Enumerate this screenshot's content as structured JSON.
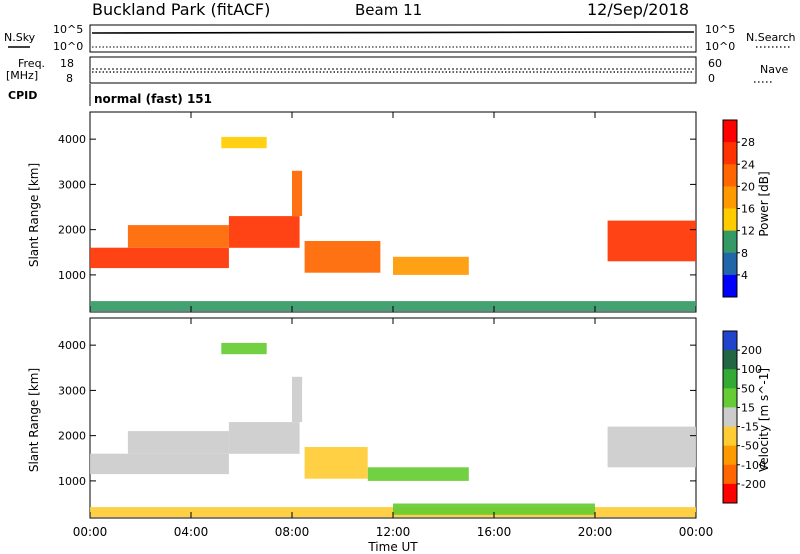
{
  "header": {
    "station": "Buckland Park (fitACF)",
    "beam": "Beam 11",
    "date": "12/Sep/2018"
  },
  "noise_panel": {
    "left_label": "N.Sky",
    "left_ticks": [
      "10^5",
      "10^0"
    ],
    "right_label": "N.Search",
    "right_ticks": [
      "10^5",
      "10^0"
    ]
  },
  "freq_panel": {
    "left_label_top": "Freq.",
    "left_label_unit": "[MHz]",
    "left_ticks": [
      "18",
      "8"
    ],
    "right_label": "Nave",
    "right_ticks": [
      "60",
      "0"
    ]
  },
  "cpid": {
    "label": "CPID",
    "value": "normal (fast) 151"
  },
  "xaxis": {
    "title": "Time UT",
    "ticks": [
      "00:00",
      "04:00",
      "08:00",
      "12:00",
      "16:00",
      "20:00",
      "00:00"
    ]
  },
  "colorbars": {
    "power": {
      "title": "Power [dB]",
      "ticks": [
        "28",
        "24",
        "20",
        "16",
        "12",
        "8",
        "4"
      ],
      "colors": [
        "#ff0000",
        "#ff3300",
        "#ff6600",
        "#ff9900",
        "#ffcc00",
        "#339966",
        "#2266aa",
        "#0000ff"
      ]
    },
    "velocity": {
      "title": "Velocity [m s^-1]",
      "ticks": [
        "200",
        "100",
        "50",
        "15",
        "-15",
        "-50",
        "-100",
        "-200"
      ],
      "colors": [
        "#2244cc",
        "#226644",
        "#33aa33",
        "#66cc33",
        "#cccccc",
        "#ffcc33",
        "#ff9900",
        "#ff6600",
        "#ff0000"
      ]
    }
  },
  "chart_data": [
    {
      "type": "heatmap",
      "title": "Power",
      "xlabel": "Time UT",
      "ylabel": "Slant Range [km]",
      "xlim": [
        0,
        24
      ],
      "ylim": [
        180,
        4600
      ],
      "yticks": [
        1000,
        2000,
        3000,
        4000
      ],
      "ytick_labels": [
        "1000",
        "2000",
        "3000",
        "4000"
      ],
      "colorbar_label": "Power [dB]",
      "clim": [
        0,
        32
      ],
      "regions": [
        {
          "name": "ground-scatter-near",
          "t0": 0,
          "t1": 24,
          "r0": 200,
          "r1": 420,
          "value": 8
        },
        {
          "name": "morning-band",
          "t0": 0,
          "t1": 5.5,
          "r0": 1150,
          "r1": 1600,
          "value": 24
        },
        {
          "name": "morning-upper",
          "t0": 1.5,
          "t1": 5.5,
          "r0": 1600,
          "r1": 2100,
          "value": 20
        },
        {
          "name": "ramp-band",
          "t0": 5.5,
          "t1": 8.3,
          "r0": 1600,
          "r1": 2300,
          "value": 26
        },
        {
          "name": "ramp-top",
          "t0": 8.0,
          "t1": 8.4,
          "r0": 2300,
          "r1": 3300,
          "value": 22
        },
        {
          "name": "patch-4000",
          "t0": 5.2,
          "t1": 7.0,
          "r0": 3800,
          "r1": 4050,
          "value": 14
        },
        {
          "name": "post-ramp",
          "t0": 8.5,
          "t1": 11.5,
          "r0": 1050,
          "r1": 1750,
          "value": 22
        },
        {
          "name": "midday-scatter",
          "t0": 12.0,
          "t1": 15.0,
          "r0": 1000,
          "r1": 1400,
          "value": 16
        },
        {
          "name": "evening-band",
          "t0": 20.5,
          "t1": 24,
          "r0": 1300,
          "r1": 2200,
          "value": 24
        }
      ]
    },
    {
      "type": "heatmap",
      "title": "Velocity",
      "xlabel": "Time UT",
      "ylabel": "Slant Range [km]",
      "xlim": [
        0,
        24
      ],
      "ylim": [
        180,
        4600
      ],
      "yticks": [
        1000,
        2000,
        3000,
        4000
      ],
      "ytick_labels": [
        "1000",
        "2000",
        "3000",
        "4000"
      ],
      "colorbar_label": "Velocity [m s^-1]",
      "clim": [
        -200,
        200
      ],
      "regions": [
        {
          "name": "ground-scatter-near",
          "t0": 0,
          "t1": 24,
          "r0": 200,
          "r1": 420,
          "value": -30
        },
        {
          "name": "mid-ground-green",
          "t0": 12.0,
          "t1": 20.0,
          "r0": 250,
          "r1": 500,
          "value": 40
        },
        {
          "name": "morning-band",
          "t0": 0,
          "t1": 5.5,
          "r0": 1150,
          "r1": 1600,
          "value": 0
        },
        {
          "name": "morning-upper",
          "t0": 1.5,
          "t1": 5.5,
          "r0": 1600,
          "r1": 2100,
          "value": 0
        },
        {
          "name": "ramp-band",
          "t0": 5.5,
          "t1": 8.3,
          "r0": 1600,
          "r1": 2300,
          "value": 0
        },
        {
          "name": "ramp-top",
          "t0": 8.0,
          "t1": 8.4,
          "r0": 2300,
          "r1": 3300,
          "value": -20
        },
        {
          "name": "patch-4000",
          "t0": 5.2,
          "t1": 7.0,
          "r0": 3800,
          "r1": 4050,
          "value": 60
        },
        {
          "name": "post-ramp",
          "t0": 8.5,
          "t1": 11.0,
          "r0": 1050,
          "r1": 1750,
          "value": -40
        },
        {
          "name": "midday-scatter",
          "t0": 11.0,
          "t1": 15.0,
          "r0": 1000,
          "r1": 1300,
          "value": 40
        },
        {
          "name": "evening-band",
          "t0": 20.5,
          "t1": 24,
          "r0": 1300,
          "r1": 2200,
          "value": 0
        }
      ]
    }
  ]
}
